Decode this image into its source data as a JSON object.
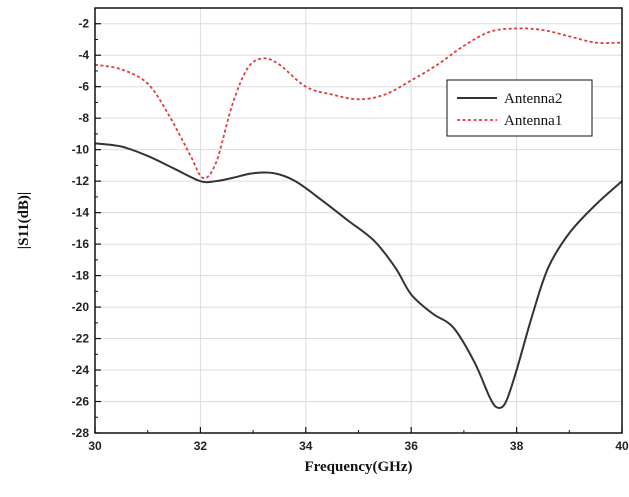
{
  "chart_data": {
    "type": "line",
    "xlabel": "Frequency(GHz)",
    "ylabel": "|S11(dB)|",
    "xlim": [
      30,
      40
    ],
    "ylim": [
      -28,
      -1
    ],
    "xticks": [
      30,
      32,
      34,
      36,
      38,
      40
    ],
    "yticks": [
      -28,
      -26,
      -24,
      -22,
      -20,
      -18,
      -16,
      -14,
      -12,
      -10,
      -8,
      -6,
      -4,
      -2
    ],
    "grid": true,
    "legend_position": "top-right",
    "series": [
      {
        "name": "Antenna2",
        "color": "#333333",
        "style": "solid",
        "points": [
          [
            30.0,
            -9.6
          ],
          [
            30.5,
            -9.8
          ],
          [
            31.0,
            -10.4
          ],
          [
            31.5,
            -11.2
          ],
          [
            32.0,
            -12.0
          ],
          [
            32.3,
            -12.0
          ],
          [
            32.6,
            -11.8
          ],
          [
            33.0,
            -11.5
          ],
          [
            33.4,
            -11.5
          ],
          [
            33.8,
            -12.0
          ],
          [
            34.3,
            -13.2
          ],
          [
            34.8,
            -14.5
          ],
          [
            35.3,
            -15.8
          ],
          [
            35.7,
            -17.5
          ],
          [
            36.0,
            -19.2
          ],
          [
            36.4,
            -20.4
          ],
          [
            36.8,
            -21.3
          ],
          [
            37.2,
            -23.5
          ],
          [
            37.5,
            -25.8
          ],
          [
            37.65,
            -26.4
          ],
          [
            37.8,
            -26.0
          ],
          [
            38.0,
            -24.0
          ],
          [
            38.3,
            -20.5
          ],
          [
            38.6,
            -17.5
          ],
          [
            39.0,
            -15.3
          ],
          [
            39.5,
            -13.5
          ],
          [
            40.0,
            -12.0
          ]
        ]
      },
      {
        "name": "Antenna1",
        "color": "#e53b3b",
        "style": "dotted",
        "points": [
          [
            30.0,
            -4.6
          ],
          [
            30.5,
            -4.9
          ],
          [
            31.0,
            -5.8
          ],
          [
            31.4,
            -7.8
          ],
          [
            31.8,
            -10.3
          ],
          [
            32.05,
            -11.8
          ],
          [
            32.3,
            -10.8
          ],
          [
            32.6,
            -7.2
          ],
          [
            32.9,
            -4.8
          ],
          [
            33.2,
            -4.2
          ],
          [
            33.5,
            -4.6
          ],
          [
            34.0,
            -6.0
          ],
          [
            34.5,
            -6.5
          ],
          [
            35.0,
            -6.8
          ],
          [
            35.5,
            -6.5
          ],
          [
            36.0,
            -5.6
          ],
          [
            36.5,
            -4.6
          ],
          [
            37.0,
            -3.4
          ],
          [
            37.5,
            -2.5
          ],
          [
            38.0,
            -2.3
          ],
          [
            38.5,
            -2.4
          ],
          [
            39.0,
            -2.8
          ],
          [
            39.5,
            -3.2
          ],
          [
            40.0,
            -3.2
          ]
        ]
      }
    ]
  }
}
